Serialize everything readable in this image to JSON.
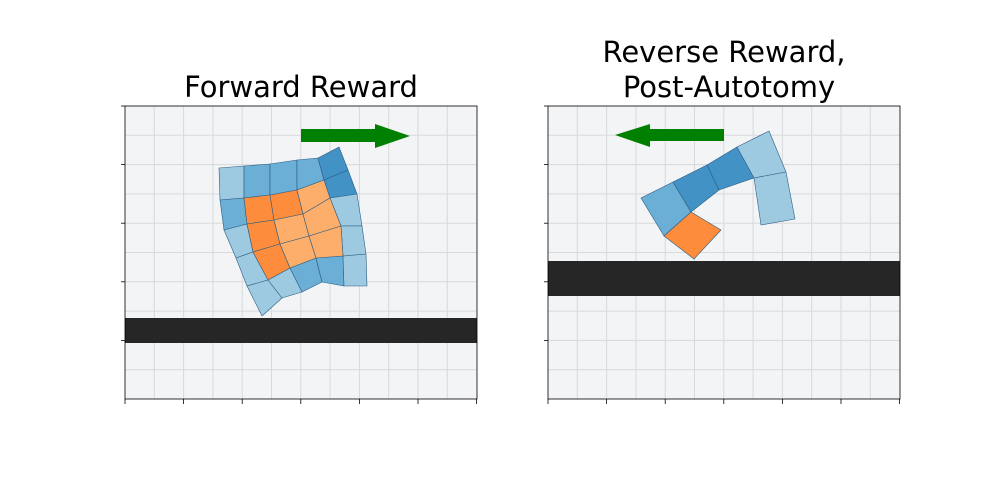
{
  "panels": [
    {
      "title_lines": [
        "Forward Reward"
      ],
      "arrow_direction": "right"
    },
    {
      "title_lines": [
        "Reverse Reward,",
        "Post-Autotomy"
      ],
      "arrow_direction": "left"
    }
  ],
  "colors": {
    "background": "#f2f4f6",
    "grid": "#d7d9dc",
    "ground": "#262626",
    "arrow": "#008000",
    "body_blue_light": "#9ecae1",
    "body_blue_mid": "#6baed6",
    "body_blue_dark": "#4292c6",
    "body_orange": "#fd8d3c",
    "body_orange_light": "#fdae6b"
  }
}
